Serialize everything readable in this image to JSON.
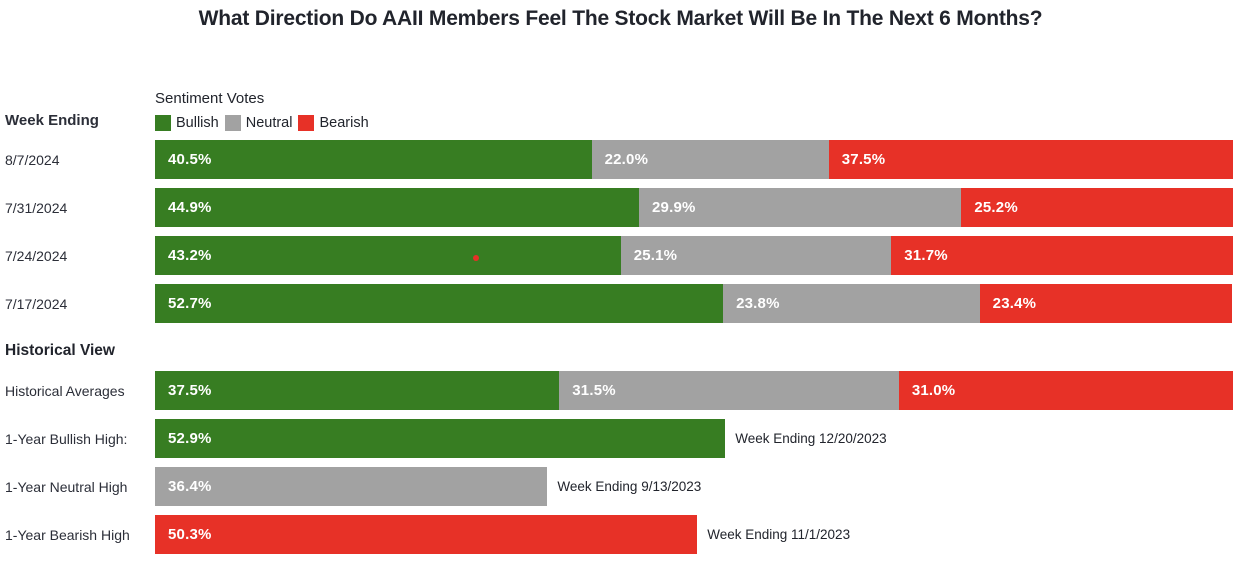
{
  "title": "What Direction Do AAII Members Feel The Stock Market Will Be In The Next 6 Months?",
  "header": {
    "week_ending_label": "Week Ending",
    "section_heading": "Historical View"
  },
  "legend": {
    "title": "Sentiment Votes",
    "items": [
      {
        "label": "Bullish",
        "color": "#377d22"
      },
      {
        "label": "Neutral",
        "color": "#a2a2a2"
      },
      {
        "label": "Bearish",
        "color": "#e73127"
      }
    ]
  },
  "colors": {
    "bullish": "#377d22",
    "neutral": "#a2a2a2",
    "bearish": "#e73127",
    "text": "#21242c",
    "marker_red": "#e73127"
  },
  "chart_data": {
    "type": "bar",
    "stacked": true,
    "orientation": "horizontal",
    "unit": "%",
    "x_max": 100,
    "series_names": [
      "Bullish",
      "Neutral",
      "Bearish"
    ],
    "weekly_rows": [
      {
        "label": "8/7/2024",
        "values": [
          40.5,
          22.0,
          37.5
        ],
        "display": [
          "40.5%",
          "22.0%",
          "37.5%"
        ]
      },
      {
        "label": "7/31/2024",
        "values": [
          44.9,
          29.9,
          25.2
        ],
        "display": [
          "44.9%",
          "29.9%",
          "25.2%"
        ]
      },
      {
        "label": "7/24/2024",
        "values": [
          43.2,
          25.1,
          31.7
        ],
        "display": [
          "43.2%",
          "25.1%",
          "31.7%"
        ]
      },
      {
        "label": "7/17/2024",
        "values": [
          52.7,
          23.8,
          23.4
        ],
        "display": [
          "52.7%",
          "23.8%",
          "23.4%"
        ]
      }
    ],
    "historical_average_row": {
      "label": "Historical Averages",
      "values": [
        37.5,
        31.5,
        31.0
      ],
      "display": [
        "37.5%",
        "31.5%",
        "31.0%"
      ]
    },
    "high_rows": [
      {
        "label": "1-Year Bullish High:",
        "series": "Bullish",
        "value": 52.9,
        "display": "52.9%",
        "color": "#377d22",
        "annotation": "Week Ending 12/20/2023"
      },
      {
        "label": "1-Year Neutral High",
        "series": "Neutral",
        "value": 36.4,
        "display": "36.4%",
        "color": "#a2a2a2",
        "annotation": "Week Ending 9/13/2023"
      },
      {
        "label": "1-Year Bearish High",
        "series": "Bearish",
        "value": 50.3,
        "display": "50.3%",
        "color": "#e73127",
        "annotation": "Week Ending 11/1/2023"
      }
    ]
  }
}
